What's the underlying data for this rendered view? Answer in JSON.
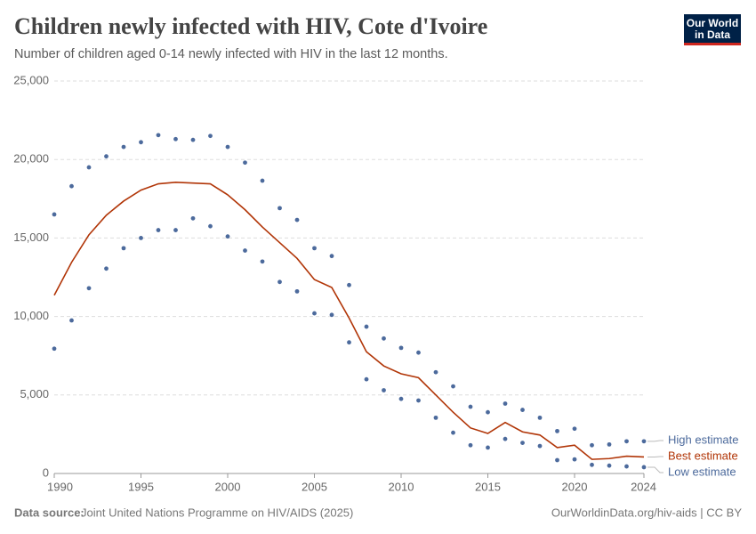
{
  "chart_data": {
    "type": "line",
    "title": "Children newly infected with HIV, Cote d'Ivoire",
    "subtitle": "Number of children aged 0-14 newly infected with HIV in the last 12 months.",
    "logo": [
      "Our World",
      "in Data"
    ],
    "source_label": "Data source:",
    "source": "Joint United Nations Programme on HIV/AIDS (2025)",
    "url": "OurWorldinData.org/hiv-aids | CC BY",
    "x": [
      1990,
      1991,
      1992,
      1993,
      1994,
      1995,
      1996,
      1997,
      1998,
      1999,
      2000,
      2001,
      2002,
      2003,
      2004,
      2005,
      2006,
      2007,
      2008,
      2009,
      2010,
      2011,
      2012,
      2013,
      2014,
      2015,
      2016,
      2017,
      2018,
      2019,
      2020,
      2021,
      2022,
      2023,
      2024
    ],
    "series": [
      {
        "name": "High estimate",
        "color": "#4c6a9c",
        "style": "dots",
        "values": [
          16500,
          18300,
          19500,
          20200,
          20800,
          21100,
          21550,
          21300,
          21250,
          21500,
          20800,
          19800,
          18650,
          16900,
          16150,
          14350,
          13850,
          12000,
          9350,
          8600,
          8000,
          7700,
          6450,
          5550,
          4250,
          3900,
          4450,
          4050,
          3550,
          2700,
          2850,
          1800,
          1850,
          2050,
          2050
        ]
      },
      {
        "name": "Best estimate",
        "color": "#b13507",
        "style": "line",
        "values": [
          11350,
          13450,
          15200,
          16450,
          17350,
          18050,
          18450,
          18550,
          18500,
          18450,
          17750,
          16800,
          15700,
          14700,
          13700,
          12350,
          11850,
          9900,
          7750,
          6850,
          6350,
          6100,
          5000,
          3900,
          2900,
          2550,
          3250,
          2650,
          2450,
          1650,
          1800,
          900,
          950,
          1100,
          1050
        ]
      },
      {
        "name": "Low estimate",
        "color": "#4c6a9c",
        "style": "dots",
        "values": [
          7950,
          9750,
          11800,
          13050,
          14350,
          15000,
          15500,
          15500,
          16250,
          15750,
          15100,
          14200,
          13500,
          12200,
          11600,
          10200,
          10100,
          8350,
          6000,
          5300,
          4750,
          4650,
          3550,
          2600,
          1800,
          1650,
          2200,
          1950,
          1750,
          850,
          900,
          550,
          500,
          450,
          400
        ]
      }
    ],
    "xlim": [
      1990,
      2024
    ],
    "xticks": [
      1990,
      1995,
      2000,
      2005,
      2010,
      2015,
      2020,
      2024
    ],
    "ylim": [
      0,
      25000
    ],
    "yticks": [
      0,
      {
        "value": 5000,
        "label": "5,000"
      },
      {
        "value": 10000,
        "label": "10,000"
      },
      {
        "value": 15000,
        "label": "15,000"
      },
      {
        "value": 20000,
        "label": "20,000"
      },
      {
        "value": 25000,
        "label": "25,000"
      }
    ],
    "grid": true
  }
}
